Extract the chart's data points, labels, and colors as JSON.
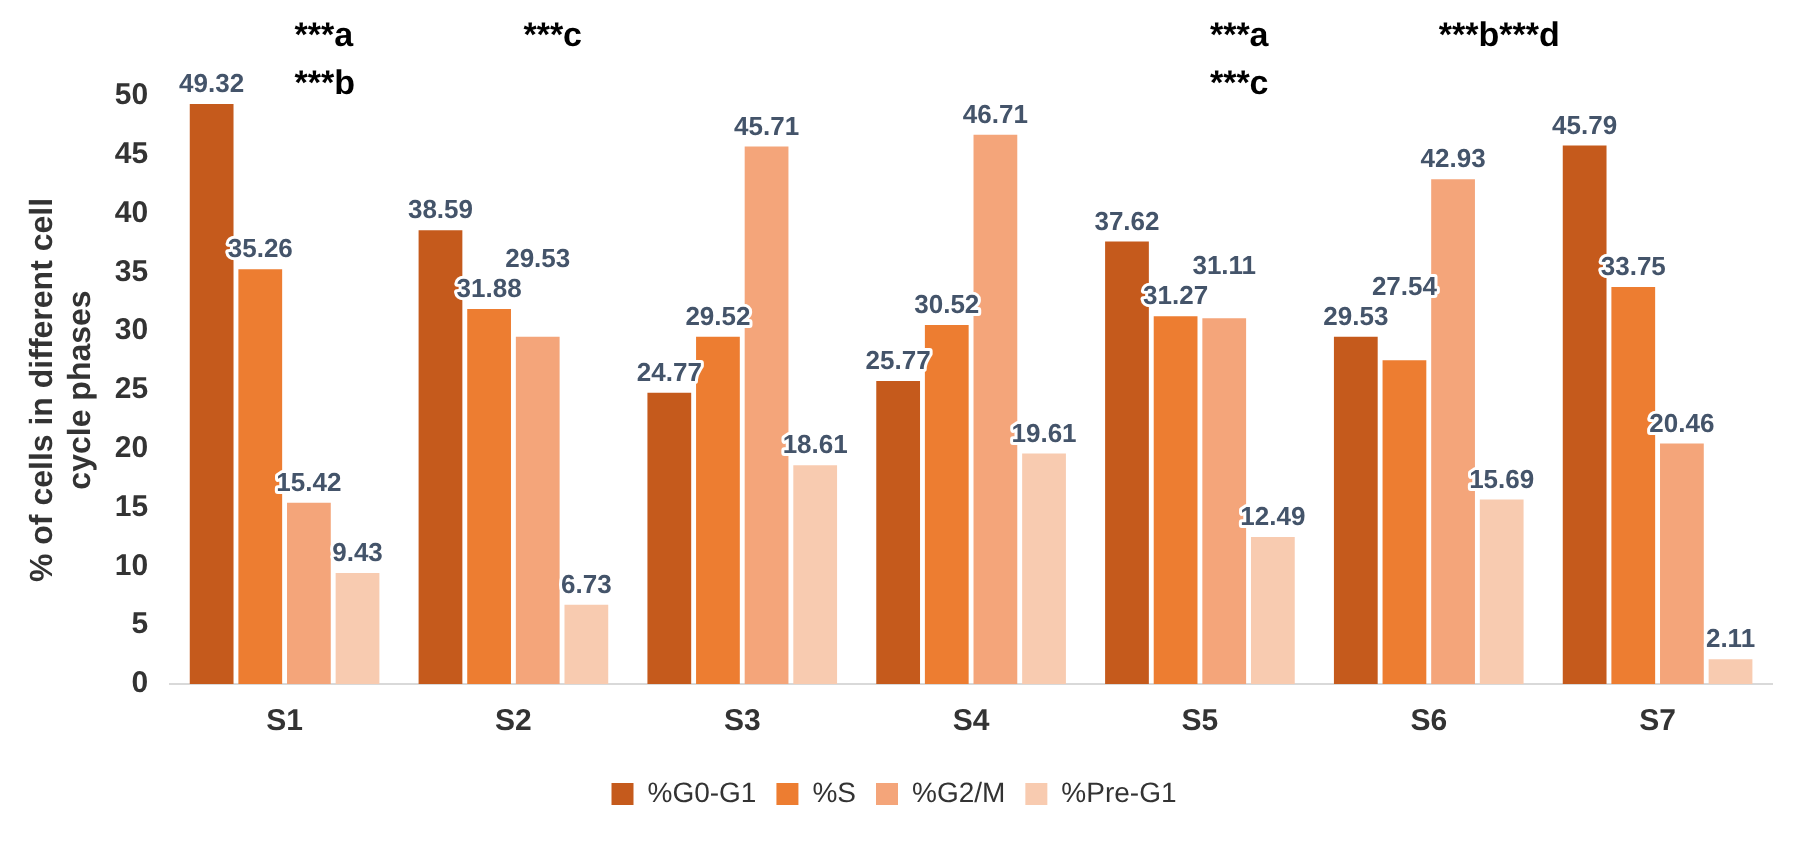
{
  "chart_data": {
    "type": "bar",
    "ylabel": "% of cells in different cell cycle phases",
    "categories": [
      "S1",
      "S2",
      "S3",
      "S4",
      "S5",
      "S6",
      "S7"
    ],
    "series": [
      {
        "name": "%G0-G1",
        "color": "#c55a1c",
        "values": [
          49.32,
          38.59,
          24.77,
          25.77,
          37.62,
          29.53,
          45.79
        ]
      },
      {
        "name": "%S",
        "color": "#ed7d31",
        "values": [
          35.26,
          31.88,
          29.52,
          30.52,
          31.27,
          27.54,
          33.75
        ]
      },
      {
        "name": "%G2/M",
        "color": "#f4a57a",
        "values": [
          15.42,
          29.53,
          45.71,
          46.71,
          31.11,
          42.93,
          20.46
        ]
      },
      {
        "name": "%Pre-G1",
        "color": "#f8cbb0",
        "values": [
          9.43,
          6.73,
          18.61,
          19.61,
          12.49,
          15.69,
          2.11
        ]
      }
    ],
    "ylim": [
      0,
      50
    ],
    "yticks": [
      0,
      5,
      10,
      15,
      20,
      25,
      30,
      35,
      40,
      45,
      50
    ],
    "grid": false,
    "legend": "bottom",
    "data_labels": true,
    "annotations": [
      "***a",
      "***b",
      "***c",
      "***a",
      "***c",
      "***b***d"
    ]
  }
}
